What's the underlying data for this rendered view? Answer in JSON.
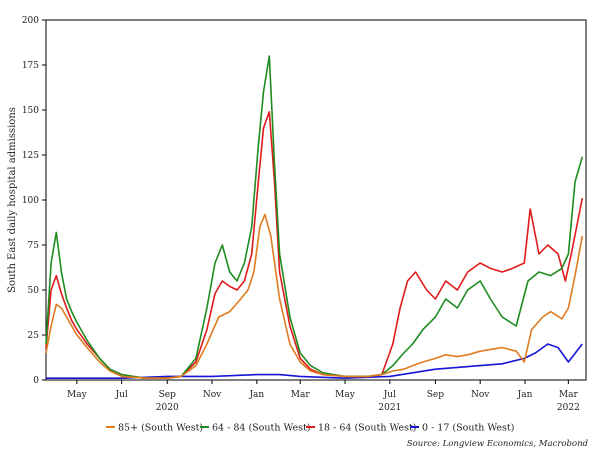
{
  "chart_data": {
    "type": "line",
    "title": "",
    "ylabel": "South East daily hospital admissions",
    "ylim": [
      0,
      200
    ],
    "yticks": [
      0,
      25,
      50,
      75,
      100,
      125,
      150,
      175,
      200
    ],
    "xlim": [
      "2020-03-20",
      "2022-03-25"
    ],
    "month_ticks": [
      {
        "date": "2020-05-01",
        "label": "May"
      },
      {
        "date": "2020-07-01",
        "label": "Jul"
      },
      {
        "date": "2020-09-01",
        "label": "Sep"
      },
      {
        "date": "2020-11-01",
        "label": "Nov"
      },
      {
        "date": "2021-01-01",
        "label": "Jan"
      },
      {
        "date": "2021-03-01",
        "label": "Mar"
      },
      {
        "date": "2021-05-01",
        "label": "May"
      },
      {
        "date": "2021-07-01",
        "label": "Jul"
      },
      {
        "date": "2021-09-01",
        "label": "Sep"
      },
      {
        "date": "2021-11-01",
        "label": "Nov"
      },
      {
        "date": "2022-01-01",
        "label": "Jan"
      },
      {
        "date": "2022-03-01",
        "label": "Mar"
      }
    ],
    "year_labels": [
      {
        "date": "2020-09-01",
        "label": "2020"
      },
      {
        "date": "2021-07-01",
        "label": "2021"
      },
      {
        "date": "2022-03-01",
        "label": "2022"
      }
    ],
    "grid": false,
    "legend": "bottom",
    "source": "Source: Longview Economics, Macrobond",
    "series": [
      {
        "name": "85+ (South West)",
        "color": "#e07b20",
        "x": [
          "2020-03-20",
          "2020-03-27",
          "2020-04-03",
          "2020-04-10",
          "2020-04-17",
          "2020-04-24",
          "2020-05-01",
          "2020-05-15",
          "2020-06-01",
          "2020-06-15",
          "2020-07-01",
          "2020-08-01",
          "2020-09-01",
          "2020-09-20",
          "2020-10-10",
          "2020-10-25",
          "2020-11-10",
          "2020-11-25",
          "2020-12-10",
          "2020-12-20",
          "2020-12-28",
          "2021-01-05",
          "2021-01-12",
          "2021-01-20",
          "2021-02-01",
          "2021-02-15",
          "2021-03-01",
          "2021-03-15",
          "2021-04-01",
          "2021-05-01",
          "2021-06-01",
          "2021-06-20",
          "2021-07-05",
          "2021-07-20",
          "2021-08-01",
          "2021-08-15",
          "2021-09-01",
          "2021-09-15",
          "2021-10-01",
          "2021-10-15",
          "2021-11-01",
          "2021-11-15",
          "2021-12-01",
          "2021-12-20",
          "2021-12-31",
          "2022-01-10",
          "2022-01-25",
          "2022-02-05",
          "2022-02-20",
          "2022-03-01",
          "2022-03-10",
          "2022-03-20"
        ],
        "y": [
          15,
          30,
          42,
          40,
          35,
          30,
          25,
          18,
          10,
          5,
          2,
          1,
          1,
          2,
          8,
          20,
          35,
          38,
          45,
          50,
          60,
          85,
          92,
          80,
          45,
          20,
          10,
          5,
          3,
          2,
          2,
          3,
          5,
          6,
          8,
          10,
          12,
          14,
          13,
          14,
          16,
          17,
          18,
          16,
          10,
          28,
          35,
          38,
          34,
          40,
          58,
          80
        ]
      },
      {
        "name": "64 - 84 (South West)",
        "color": "#1e8c1e",
        "x": [
          "2020-03-20",
          "2020-03-27",
          "2020-04-03",
          "2020-04-10",
          "2020-04-17",
          "2020-04-24",
          "2020-05-01",
          "2020-05-15",
          "2020-06-01",
          "2020-06-15",
          "2020-07-01",
          "2020-08-01",
          "2020-09-01",
          "2020-09-20",
          "2020-10-10",
          "2020-10-25",
          "2020-11-05",
          "2020-11-15",
          "2020-11-25",
          "2020-12-05",
          "2020-12-15",
          "2020-12-25",
          "2021-01-03",
          "2021-01-10",
          "2021-01-18",
          "2021-01-25",
          "2021-02-01",
          "2021-02-15",
          "2021-03-01",
          "2021-03-15",
          "2021-04-01",
          "2021-05-01",
          "2021-06-01",
          "2021-06-20",
          "2021-07-05",
          "2021-07-20",
          "2021-08-01",
          "2021-08-15",
          "2021-09-01",
          "2021-09-15",
          "2021-10-01",
          "2021-10-15",
          "2021-11-01",
          "2021-11-15",
          "2021-12-01",
          "2021-12-20",
          "2022-01-05",
          "2022-01-20",
          "2022-02-05",
          "2022-02-20",
          "2022-03-01",
          "2022-03-10",
          "2022-03-20"
        ],
        "y": [
          20,
          65,
          82,
          60,
          45,
          38,
          32,
          22,
          12,
          6,
          3,
          1,
          1,
          2,
          12,
          40,
          65,
          75,
          60,
          55,
          65,
          85,
          130,
          160,
          180,
          120,
          70,
          35,
          15,
          8,
          4,
          2,
          2,
          3,
          8,
          15,
          20,
          28,
          35,
          45,
          40,
          50,
          55,
          45,
          35,
          30,
          55,
          60,
          58,
          62,
          70,
          110,
          124
        ]
      },
      {
        "name": "18 - 64 (South West)",
        "color": "#e01b1b",
        "x": [
          "2020-03-20",
          "2020-03-27",
          "2020-04-03",
          "2020-04-10",
          "2020-04-17",
          "2020-04-24",
          "2020-05-01",
          "2020-05-15",
          "2020-06-01",
          "2020-06-15",
          "2020-07-01",
          "2020-08-01",
          "2020-09-01",
          "2020-09-20",
          "2020-10-10",
          "2020-10-25",
          "2020-11-05",
          "2020-11-15",
          "2020-11-25",
          "2020-12-05",
          "2020-12-15",
          "2020-12-25",
          "2021-01-03",
          "2021-01-10",
          "2021-01-18",
          "2021-01-25",
          "2021-02-01",
          "2021-02-15",
          "2021-03-01",
          "2021-03-15",
          "2021-04-01",
          "2021-05-01",
          "2021-06-01",
          "2021-06-20",
          "2021-07-05",
          "2021-07-15",
          "2021-07-25",
          "2021-08-05",
          "2021-08-20",
          "2021-09-01",
          "2021-09-15",
          "2021-10-01",
          "2021-10-15",
          "2021-11-01",
          "2021-11-15",
          "2021-12-01",
          "2021-12-15",
          "2021-12-31",
          "2022-01-08",
          "2022-01-20",
          "2022-02-01",
          "2022-02-15",
          "2022-02-25",
          "2022-03-05",
          "2022-03-20"
        ],
        "y": [
          18,
          50,
          58,
          48,
          40,
          33,
          28,
          20,
          12,
          6,
          3,
          1,
          1,
          2,
          10,
          28,
          48,
          55,
          52,
          50,
          55,
          70,
          110,
          140,
          149,
          110,
          60,
          30,
          12,
          6,
          3,
          2,
          2,
          3,
          20,
          40,
          55,
          60,
          50,
          45,
          55,
          50,
          60,
          65,
          62,
          60,
          62,
          65,
          95,
          70,
          75,
          70,
          55,
          70,
          101
        ]
      },
      {
        "name": "0 - 17 (South West)",
        "color": "#1515d6",
        "x": [
          "2020-03-20",
          "2020-05-01",
          "2020-07-01",
          "2020-09-01",
          "2020-11-01",
          "2021-01-01",
          "2021-02-01",
          "2021-03-01",
          "2021-05-01",
          "2021-07-01",
          "2021-08-01",
          "2021-09-01",
          "2021-10-01",
          "2021-11-01",
          "2021-12-01",
          "2021-12-31",
          "2022-01-15",
          "2022-02-01",
          "2022-02-15",
          "2022-03-01",
          "2022-03-20"
        ],
        "y": [
          1,
          1,
          1,
          2,
          2,
          3,
          3,
          2,
          1,
          2,
          4,
          6,
          7,
          8,
          9,
          12,
          15,
          20,
          18,
          10,
          20
        ]
      }
    ]
  }
}
